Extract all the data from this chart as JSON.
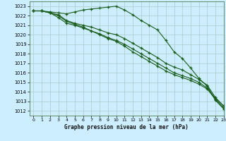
{
  "title": "Graphe pression niveau de la mer (hPa)",
  "bg_color": "#cceeff",
  "grid_color": "#aacccc",
  "line_color": "#1a5c1a",
  "xlim": [
    -0.5,
    23
  ],
  "ylim": [
    1011.5,
    1023.5
  ],
  "yticks": [
    1012,
    1013,
    1014,
    1015,
    1016,
    1017,
    1018,
    1019,
    1020,
    1021,
    1022,
    1023
  ],
  "xticks": [
    0,
    1,
    2,
    3,
    4,
    5,
    6,
    7,
    8,
    9,
    10,
    11,
    12,
    13,
    14,
    15,
    16,
    17,
    18,
    19,
    20,
    21,
    22,
    23
  ],
  "series": [
    {
      "x": [
        0,
        1,
        2,
        3,
        4,
        5,
        6,
        7,
        8,
        9,
        10,
        11,
        12,
        13,
        14,
        15,
        16,
        17,
        18,
        19,
        20,
        21,
        22,
        23
      ],
      "y": [
        1022.5,
        1022.5,
        1022.4,
        1022.3,
        1022.2,
        1022.4,
        1022.6,
        1022.7,
        1022.8,
        1022.9,
        1023.0,
        1022.6,
        1022.1,
        1021.5,
        1021.0,
        1020.5,
        1019.4,
        1018.2,
        1017.5,
        1016.5,
        1015.4,
        1014.6,
        1013.1,
        1012.2
      ]
    },
    {
      "x": [
        0,
        1,
        2,
        3,
        4,
        5,
        6,
        7,
        8,
        9,
        10,
        11,
        12,
        13,
        14,
        15,
        16,
        17,
        18,
        19,
        20,
        21,
        22,
        23
      ],
      "y": [
        1022.5,
        1022.5,
        1022.3,
        1022.1,
        1021.5,
        1021.2,
        1021.0,
        1020.8,
        1020.5,
        1020.2,
        1020.0,
        1019.6,
        1019.1,
        1018.6,
        1018.1,
        1017.6,
        1017.0,
        1016.6,
        1016.3,
        1015.8,
        1015.3,
        1014.7,
        1013.4,
        1012.5
      ]
    },
    {
      "x": [
        0,
        1,
        2,
        3,
        4,
        5,
        6,
        7,
        8,
        9,
        10,
        11,
        12,
        13,
        14,
        15,
        16,
        17,
        18,
        19,
        20,
        21,
        22,
        23
      ],
      "y": [
        1022.5,
        1022.5,
        1022.3,
        1021.8,
        1021.2,
        1021.0,
        1020.7,
        1020.4,
        1020.1,
        1019.7,
        1019.4,
        1019.0,
        1018.5,
        1018.0,
        1017.5,
        1017.0,
        1016.5,
        1016.0,
        1015.7,
        1015.4,
        1015.0,
        1014.4,
        1013.3,
        1012.5
      ]
    },
    {
      "x": [
        0,
        1,
        2,
        3,
        4,
        5,
        6,
        7,
        8,
        9,
        10,
        11,
        12,
        13,
        14,
        15,
        16,
        17,
        18,
        19,
        20,
        21,
        22,
        23
      ],
      "y": [
        1022.5,
        1022.5,
        1022.3,
        1022.0,
        1021.4,
        1021.1,
        1020.8,
        1020.4,
        1020.0,
        1019.6,
        1019.3,
        1018.8,
        1018.2,
        1017.7,
        1017.2,
        1016.7,
        1016.2,
        1015.8,
        1015.5,
        1015.2,
        1014.8,
        1014.3,
        1013.2,
        1012.3
      ]
    }
  ]
}
